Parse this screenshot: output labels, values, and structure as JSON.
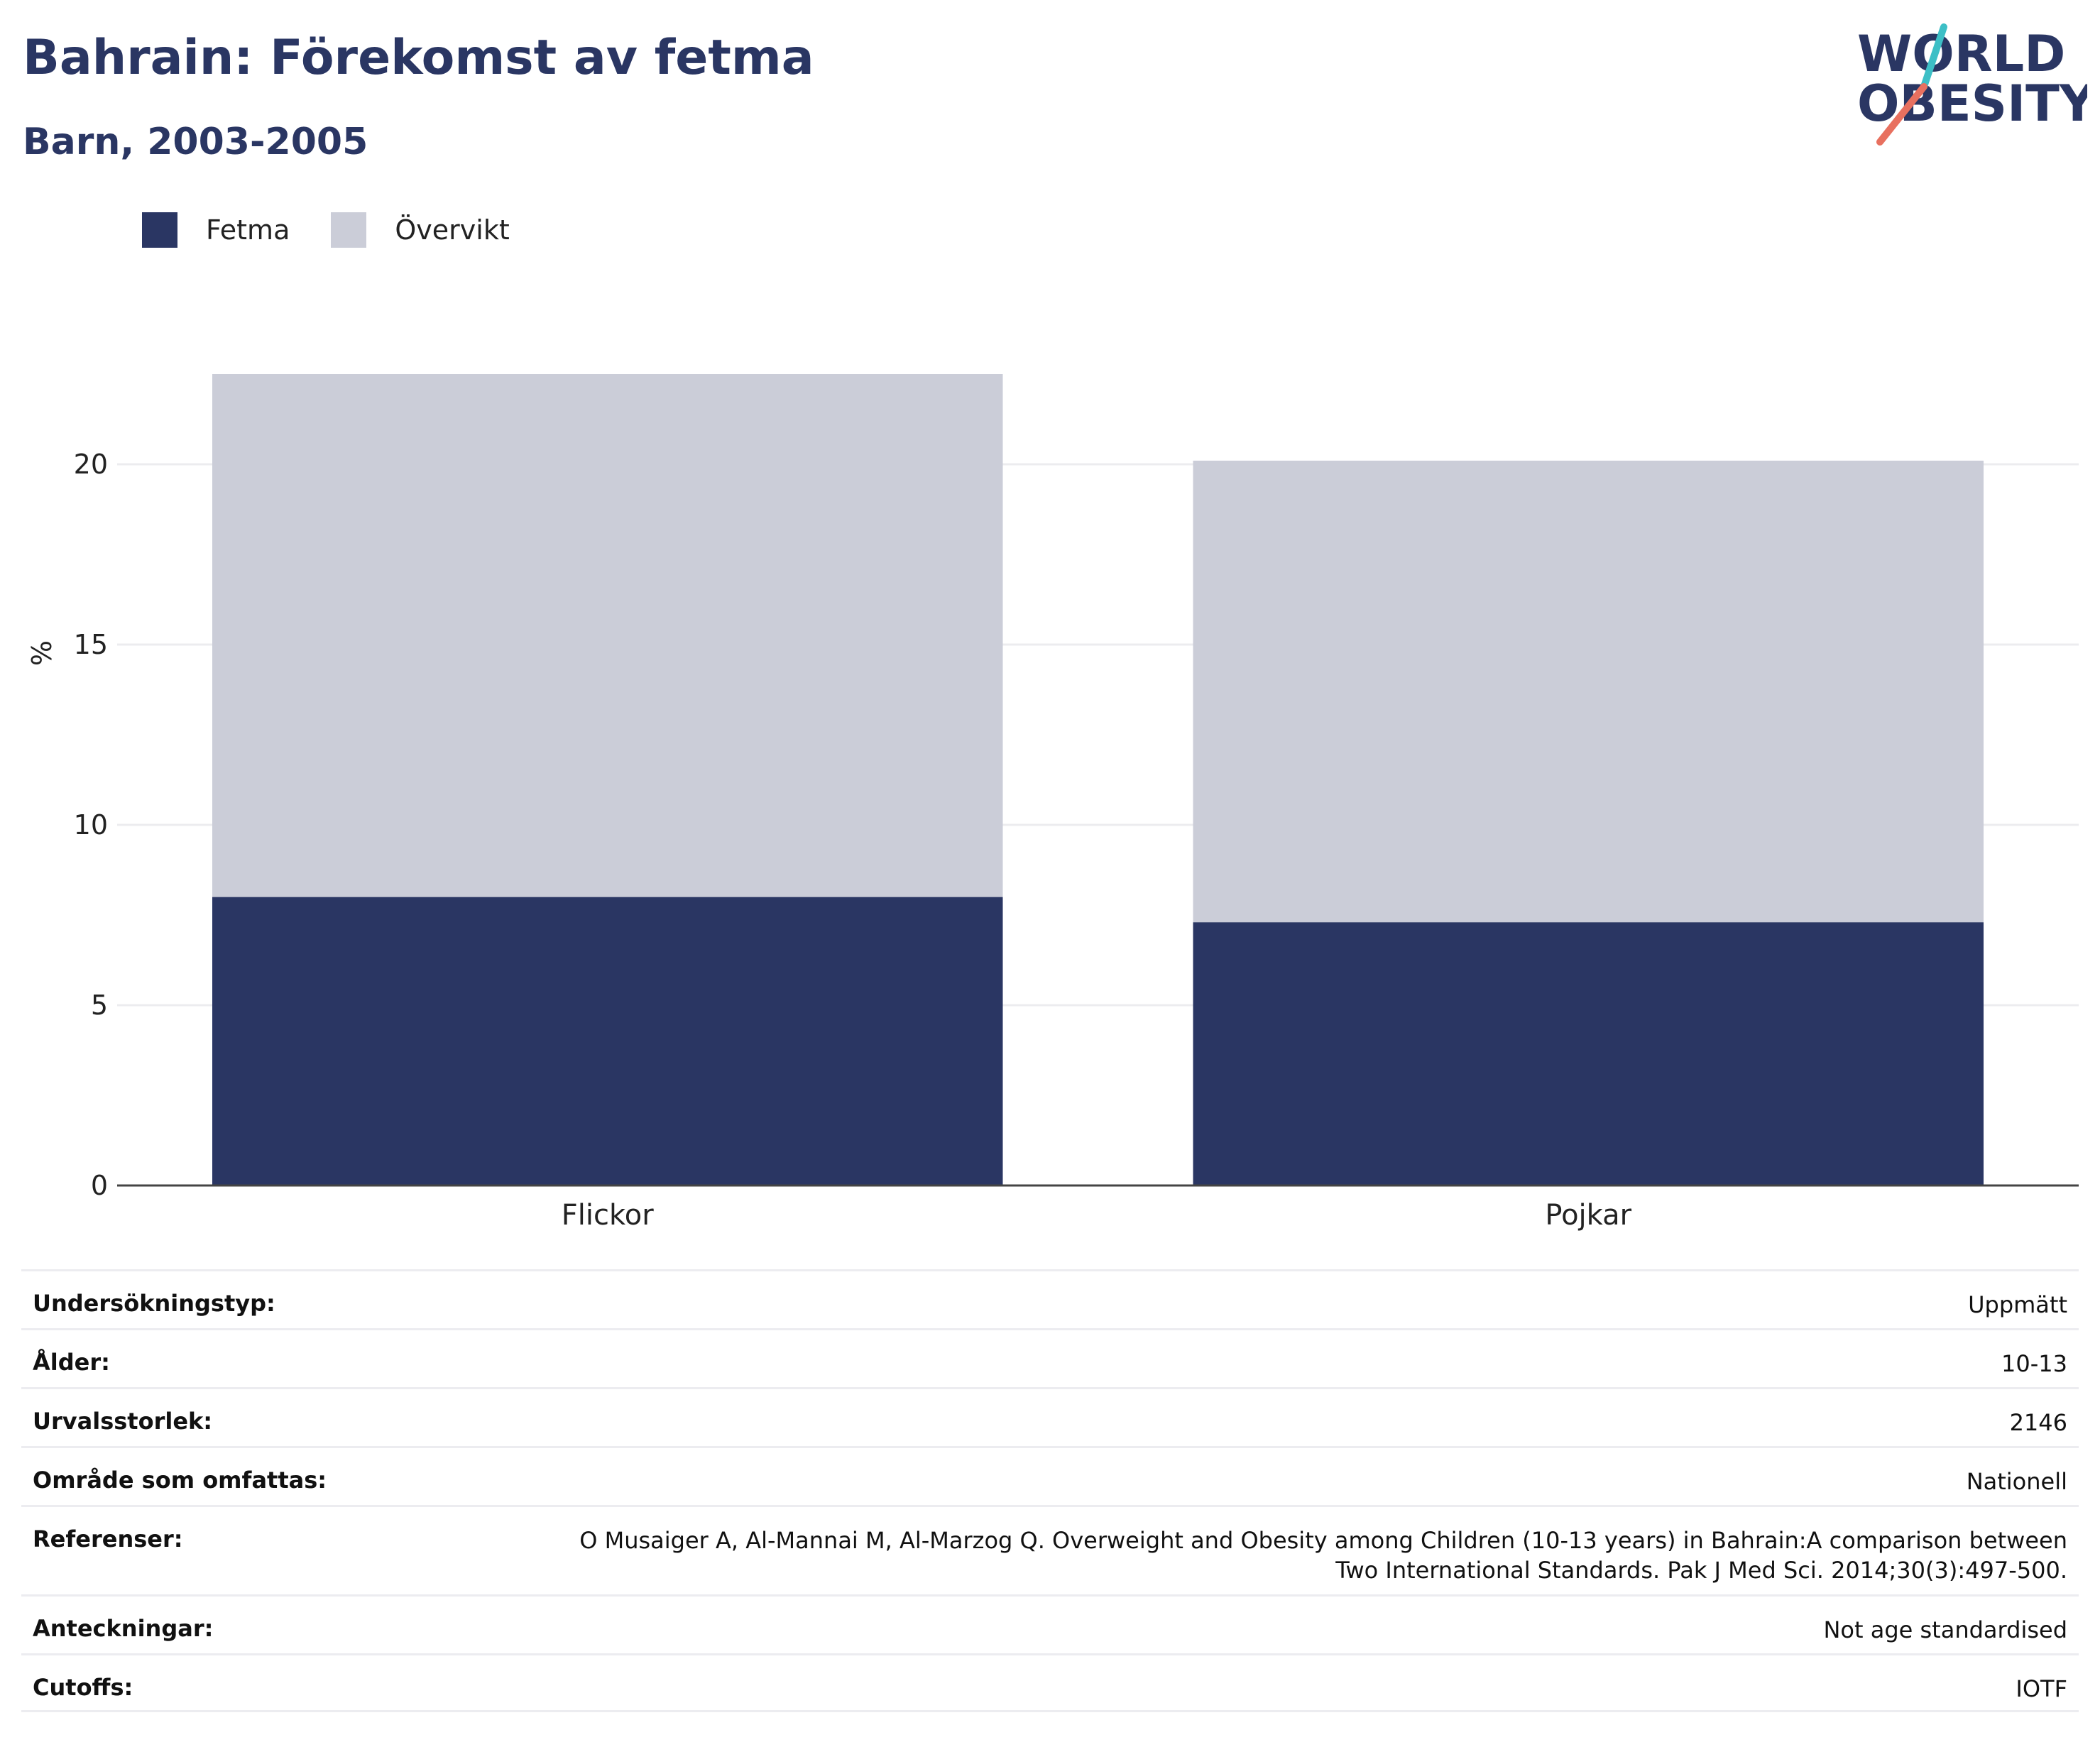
{
  "header": {
    "title": "Bahrain: Förekomst av fetma",
    "subtitle": "Barn, 2003-2005"
  },
  "logo": {
    "line1": "WORLD",
    "line2": "OBESITY",
    "icon": "world-obesity-logo"
  },
  "colors": {
    "fetma": "#2a3663",
    "overvikt": "#cbcdd8",
    "text": "#2a3663",
    "accent_teal": "#3dbfc6",
    "accent_coral": "#e8705f"
  },
  "chart_data": {
    "type": "bar",
    "stacked": true,
    "categories": [
      "Flickor",
      "Pojkar"
    ],
    "series": [
      {
        "name": "Fetma",
        "values": [
          8.0,
          7.3
        ]
      },
      {
        "name": "Övervikt",
        "values": [
          14.5,
          12.8
        ]
      }
    ],
    "ylabel": "%",
    "xlabel": "",
    "ylim": [
      0,
      25
    ],
    "yticks": [
      0,
      5,
      10,
      15,
      20
    ],
    "grid": true,
    "legend_position": "top-left"
  },
  "info": {
    "rows": [
      {
        "key": "Undersökningstyp:",
        "value": "Uppmätt"
      },
      {
        "key": "Ålder:",
        "value": "10-13"
      },
      {
        "key": "Urvalsstorlek:",
        "value": "2146"
      },
      {
        "key": "Område som omfattas:",
        "value": "Nationell"
      },
      {
        "key": "Referenser:",
        "value": "O Musaiger A, Al-Mannai M, Al-Marzog Q. Overweight and Obesity among Children (10-13 years) in Bahrain:A comparison between Two International Standards. Pak J Med Sci. 2014;30(3):497-500."
      },
      {
        "key": "Anteckningar:",
        "value": "Not age standardised"
      },
      {
        "key": "Cutoffs:",
        "value": "IOTF"
      }
    ]
  }
}
